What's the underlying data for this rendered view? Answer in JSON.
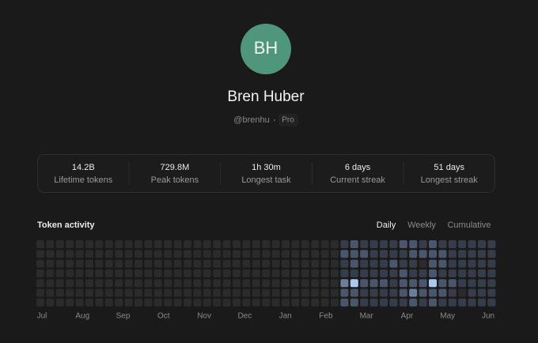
{
  "profile": {
    "initials": "BH",
    "name": "Bren Huber",
    "handle": "@brenhu",
    "plan": "Pro"
  },
  "stats": [
    {
      "value": "14.2B",
      "label": "Lifetime tokens"
    },
    {
      "value": "729.8M",
      "label": "Peak tokens"
    },
    {
      "value": "1h 30m",
      "label": "Longest task"
    },
    {
      "value": "6 days",
      "label": "Current streak"
    },
    {
      "value": "51 days",
      "label": "Longest streak"
    }
  ],
  "activity": {
    "title": "Token activity",
    "tabs": [
      "Daily",
      "Weekly",
      "Cumulative"
    ],
    "active_tab": 0,
    "months": [
      "Jul",
      "Aug",
      "Sep",
      "Oct",
      "Nov",
      "Dec",
      "Jan",
      "Feb",
      "Mar",
      "Apr",
      "May",
      "Jun"
    ],
    "level_colors": [
      "#2b2b2b",
      "#363d48",
      "#4a566a",
      "#6b7f9c",
      "#a9c9f2"
    ],
    "levels": [
      [
        0,
        0,
        0,
        0,
        0,
        0,
        0
      ],
      [
        0,
        0,
        0,
        0,
        0,
        0,
        0
      ],
      [
        0,
        0,
        0,
        0,
        0,
        0,
        0
      ],
      [
        0,
        0,
        0,
        0,
        0,
        0,
        0
      ],
      [
        0,
        0,
        0,
        0,
        0,
        0,
        0
      ],
      [
        0,
        0,
        0,
        0,
        0,
        0,
        0
      ],
      [
        0,
        0,
        0,
        0,
        0,
        0,
        0
      ],
      [
        0,
        0,
        0,
        0,
        0,
        0,
        0
      ],
      [
        0,
        0,
        0,
        0,
        0,
        0,
        0
      ],
      [
        0,
        0,
        0,
        0,
        0,
        0,
        0
      ],
      [
        0,
        0,
        0,
        0,
        0,
        0,
        0
      ],
      [
        0,
        0,
        0,
        0,
        0,
        0,
        0
      ],
      [
        0,
        0,
        0,
        0,
        0,
        0,
        0
      ],
      [
        0,
        0,
        0,
        0,
        0,
        0,
        0
      ],
      [
        0,
        0,
        0,
        0,
        0,
        0,
        0
      ],
      [
        0,
        0,
        0,
        0,
        0,
        0,
        0
      ],
      [
        0,
        0,
        0,
        0,
        0,
        0,
        0
      ],
      [
        0,
        0,
        0,
        0,
        0,
        0,
        0
      ],
      [
        0,
        0,
        0,
        0,
        0,
        0,
        0
      ],
      [
        0,
        0,
        0,
        0,
        0,
        0,
        0
      ],
      [
        0,
        0,
        0,
        0,
        0,
        0,
        0
      ],
      [
        0,
        0,
        0,
        0,
        0,
        0,
        0
      ],
      [
        0,
        0,
        0,
        0,
        0,
        0,
        0
      ],
      [
        0,
        0,
        0,
        0,
        0,
        0,
        0
      ],
      [
        0,
        0,
        0,
        0,
        0,
        0,
        0
      ],
      [
        0,
        0,
        0,
        0,
        0,
        0,
        0
      ],
      [
        0,
        0,
        0,
        0,
        0,
        0,
        0
      ],
      [
        0,
        0,
        0,
        0,
        0,
        0,
        0
      ],
      [
        0,
        0,
        0,
        0,
        0,
        0,
        0
      ],
      [
        0,
        0,
        0,
        0,
        0,
        0,
        0
      ],
      [
        0,
        0,
        0,
        0,
        0,
        0,
        0
      ],
      [
        1,
        2,
        1,
        1,
        3,
        2,
        2
      ],
      [
        2,
        2,
        2,
        1,
        4,
        2,
        2
      ],
      [
        1,
        2,
        1,
        1,
        2,
        1,
        1
      ],
      [
        1,
        1,
        1,
        1,
        2,
        1,
        1
      ],
      [
        1,
        1,
        1,
        1,
        2,
        1,
        1
      ],
      [
        1,
        1,
        2,
        1,
        1,
        1,
        1
      ],
      [
        2,
        1,
        1,
        2,
        2,
        2,
        1
      ],
      [
        2,
        2,
        1,
        1,
        2,
        3,
        2
      ],
      [
        1,
        2,
        0,
        1,
        2,
        2,
        1
      ],
      [
        2,
        2,
        2,
        2,
        4,
        2,
        2
      ],
      [
        1,
        2,
        2,
        1,
        2,
        2,
        1
      ],
      [
        1,
        1,
        1,
        1,
        2,
        1,
        1
      ],
      [
        1,
        1,
        1,
        1,
        1,
        0,
        1
      ],
      [
        1,
        1,
        1,
        1,
        1,
        1,
        1
      ],
      [
        1,
        1,
        1,
        1,
        1,
        1,
        1
      ],
      [
        1,
        1,
        1,
        1,
        1,
        1,
        1
      ]
    ]
  }
}
